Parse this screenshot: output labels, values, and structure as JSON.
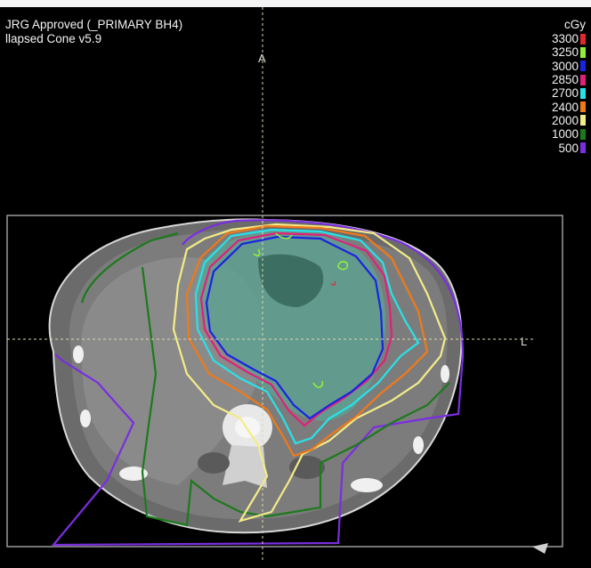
{
  "overlay": {
    "plan_line": "JRG Approved (_PRIMARY BH4)",
    "algorithm_line": "llapsed Cone v5.9",
    "dose_unit": "cGy",
    "anterior_label": "A",
    "left_label": "L"
  },
  "legend": [
    {
      "value": "3300",
      "color": "#e0282d"
    },
    {
      "value": "3250",
      "color": "#8ef03a"
    },
    {
      "value": "3000",
      "color": "#1a24e0"
    },
    {
      "value": "2850",
      "color": "#e0207a"
    },
    {
      "value": "2700",
      "color": "#28e2e8"
    },
    {
      "value": "2400",
      "color": "#f07a18"
    },
    {
      "value": "2000",
      "color": "#f4ec88"
    },
    {
      "value": "1000",
      "color": "#1c7a1c"
    },
    {
      "value": "500",
      "color": "#7a2ee0"
    }
  ]
}
